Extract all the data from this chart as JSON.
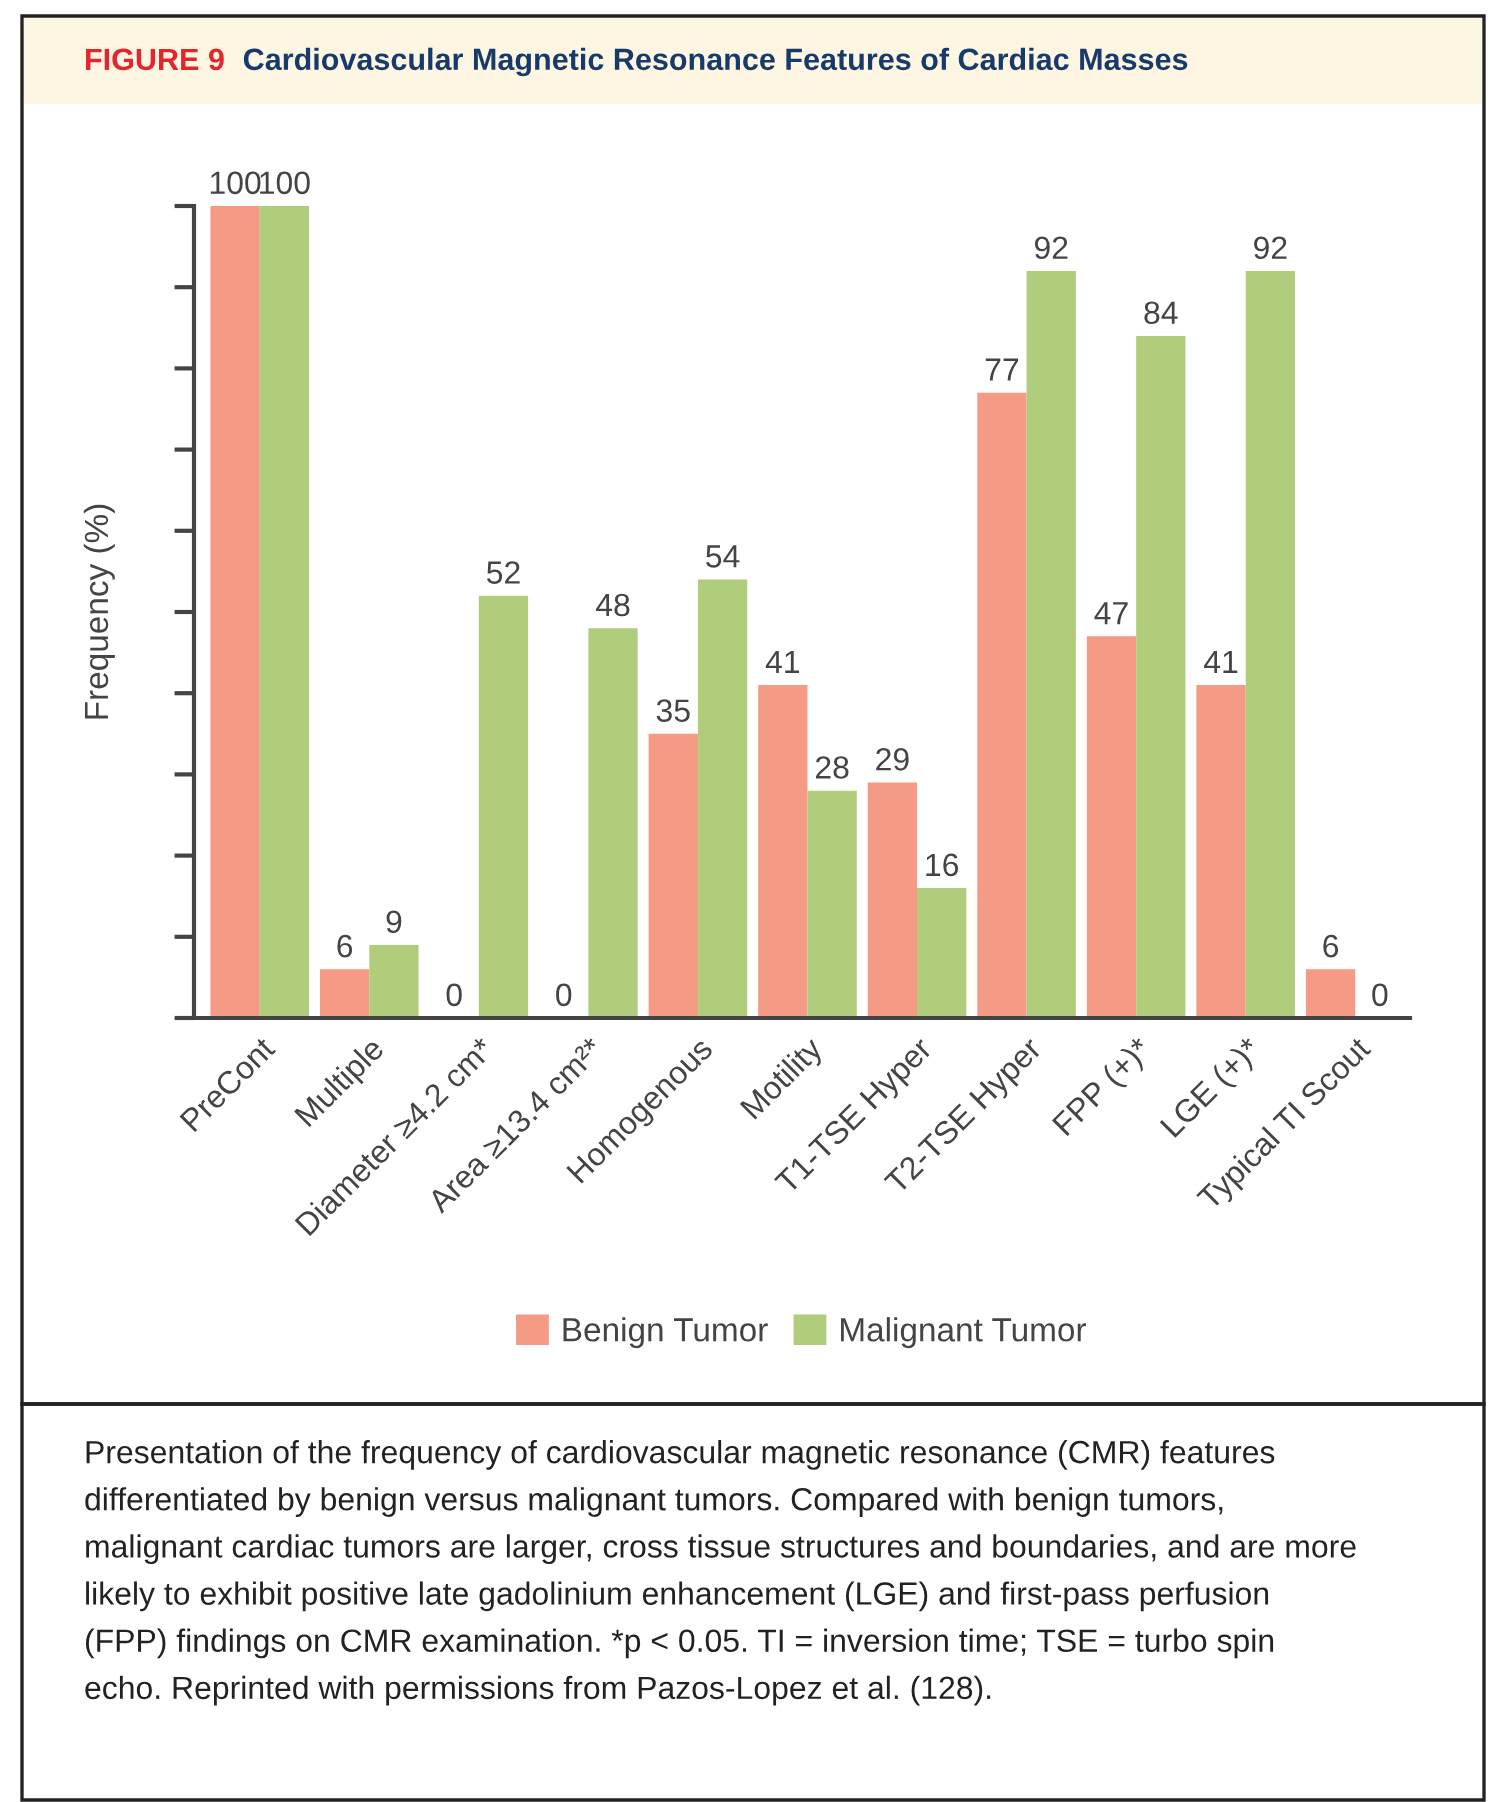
{
  "chart_data": {
    "type": "bar",
    "title": "Cardiovascular Magnetic Resonance Features of Cardiac Masses",
    "ylabel": "Frequency (%)",
    "categories": [
      "PreCont",
      "Multiple",
      "Diameter ≥4.2 cm*",
      "Area ≥13.4 cm²*",
      "Homogenous",
      "Motility",
      "T1-TSE Hyper",
      "T2-TSE Hyper",
      "FPP (+)*",
      "LGE (+)*",
      "Typical TI Scout"
    ],
    "series": [
      {
        "name": "Benign Tumor",
        "color": "#f49a85",
        "values": [
          100,
          6,
          0,
          0,
          35,
          41,
          29,
          77,
          47,
          41,
          6
        ]
      },
      {
        "name": "Malignant Tumor",
        "color": "#b0cd7b",
        "values": [
          100,
          9,
          52,
          48,
          54,
          28,
          16,
          92,
          84,
          92,
          0
        ]
      }
    ],
    "ylim": [
      0,
      100
    ],
    "yticks": [
      {
        "value": 0,
        "label": null
      },
      {
        "value": 10,
        "label": null
      },
      {
        "value": 20,
        "label": null
      },
      {
        "value": 30,
        "label": null
      },
      {
        "value": 40,
        "label": null
      },
      {
        "value": 50,
        "label": null
      },
      {
        "value": 60,
        "label": null
      },
      {
        "value": 70,
        "label": null
      },
      {
        "value": 80,
        "label": null
      },
      {
        "value": 90,
        "label": null
      },
      {
        "value": 100,
        "label": null
      }
    ],
    "data_labels": true,
    "legend": "bottom",
    "grid": false,
    "annotations": [
      "FIGURE 9",
      "Presentation of the frequency of cardiovascular magnetic resonance (CMR) features\ndifferentiated by benign versus malignant tumors. Compared with benign tumors,\nmalignant cardiac tumors are larger, cross tissue structures and boundaries, and are more\nlikely to exhibit positive late gadolinium enhancement (LGE) and first-pass perfusion\n(FPP) findings on CMR examination. *p < 0.05. TI = inversion time; TSE = turbo spin\necho. Reprinted with permissions from Pazos-Lopez et al. (128)."
    ]
  }
}
